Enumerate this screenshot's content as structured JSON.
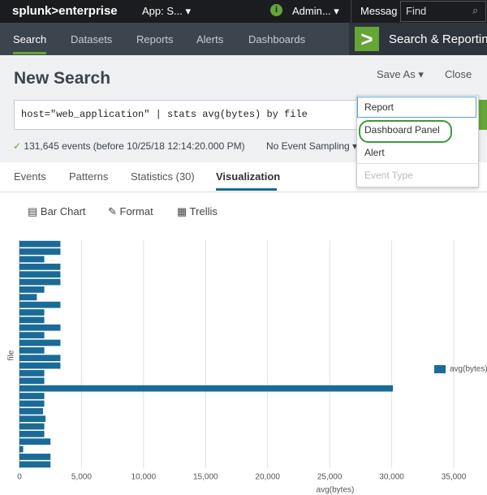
{
  "top_bar": {
    "logo": "splunk>enterprise",
    "app": "App: S...",
    "user": "Admin...",
    "messages": "Messag",
    "find": "Find"
  },
  "nav": {
    "tabs": [
      "Search",
      "Datasets",
      "Reports",
      "Alerts",
      "Dashboards"
    ],
    "app_title": "Search & Reporting"
  },
  "header": {
    "title": "New Search",
    "save_as": "Save As",
    "close": "Close"
  },
  "search": {
    "query": "host=\"web_application\" | stats avg(bytes) by file",
    "status": "131,645 events (before 10/25/18 12:14:20.000 PM)",
    "sampling": "No Event Sampling"
  },
  "results_tabs": [
    "Events",
    "Patterns",
    "Statistics (30)",
    "Visualization"
  ],
  "viz_toolbar": [
    "Bar Chart",
    "Format",
    "Trellis"
  ],
  "save_as_menu": [
    "Report",
    "Dashboard Panel",
    "Alert",
    "Event Type"
  ],
  "chart_data": {
    "type": "bar",
    "orientation": "horizontal",
    "categories": [
      null,
      null,
      null,
      null,
      null,
      null,
      null,
      null,
      null,
      null,
      null,
      null,
      null,
      null,
      null,
      null,
      null,
      null,
      null,
      null,
      null,
      null,
      null,
      null,
      null,
      null,
      null,
      null,
      null,
      null
    ],
    "series": [
      {
        "name": "avg(bytes)",
        "color": "#1a6b97",
        "values": [
          3300,
          3300,
          2000,
          3300,
          3300,
          3300,
          2000,
          1400,
          3300,
          2000,
          2000,
          3300,
          2000,
          3300,
          2000,
          3300,
          3300,
          2000,
          2000,
          30100,
          2000,
          2000,
          1900,
          2100,
          2000,
          2000,
          2500,
          300,
          2500,
          2500
        ]
      }
    ],
    "xlabel": "avg(bytes)",
    "ylabel": "file",
    "xlim": [
      0,
      35000
    ],
    "xticks": [
      0,
      {
        "value": 5000,
        "label": "5,000"
      },
      {
        "value": 10000,
        "label": "10,000"
      },
      {
        "value": 15000,
        "label": "15,000"
      },
      {
        "value": 20000,
        "label": "20,000"
      },
      {
        "value": 25000,
        "label": "25,000"
      },
      {
        "value": 30000,
        "label": "30,000"
      },
      {
        "value": 35000,
        "label": "35,000"
      }
    ],
    "grid": true,
    "legend": "right"
  }
}
